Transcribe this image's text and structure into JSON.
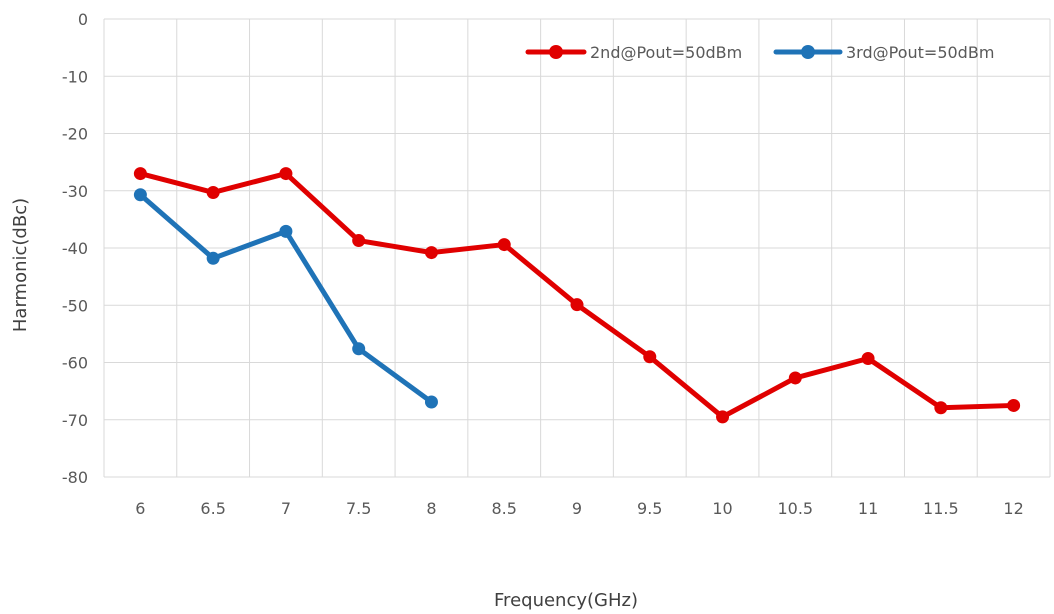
{
  "chart_data": {
    "type": "line",
    "xlabel": "Frequency(GHz)",
    "ylabel": "Harmonic(dBc)",
    "categories": [
      "6",
      "6.5",
      "7",
      "7.5",
      "8",
      "8.5",
      "9",
      "9.5",
      "10",
      "10.5",
      "11",
      "11.5",
      "12"
    ],
    "ylim": [
      -80,
      0
    ],
    "yticks": [
      0,
      -10,
      -20,
      -30,
      -40,
      -50,
      -60,
      -70,
      -80
    ],
    "grid": true,
    "legend_position": "top-right",
    "series": [
      {
        "name": "2nd@Pout=50dBm",
        "color": "#e00000",
        "values": [
          -27,
          -30.3,
          -27,
          -38.7,
          -40.8,
          -39.4,
          -49.9,
          -59,
          -69.5,
          -62.7,
          -59.3,
          -67.9,
          -67.5
        ]
      },
      {
        "name": "3rd@Pout=50dBm",
        "color": "#1f73b7",
        "values": [
          -30.7,
          -41.8,
          -37.1,
          -57.6,
          -66.9,
          null,
          null,
          null,
          null,
          null,
          null,
          null,
          null
        ]
      }
    ]
  }
}
